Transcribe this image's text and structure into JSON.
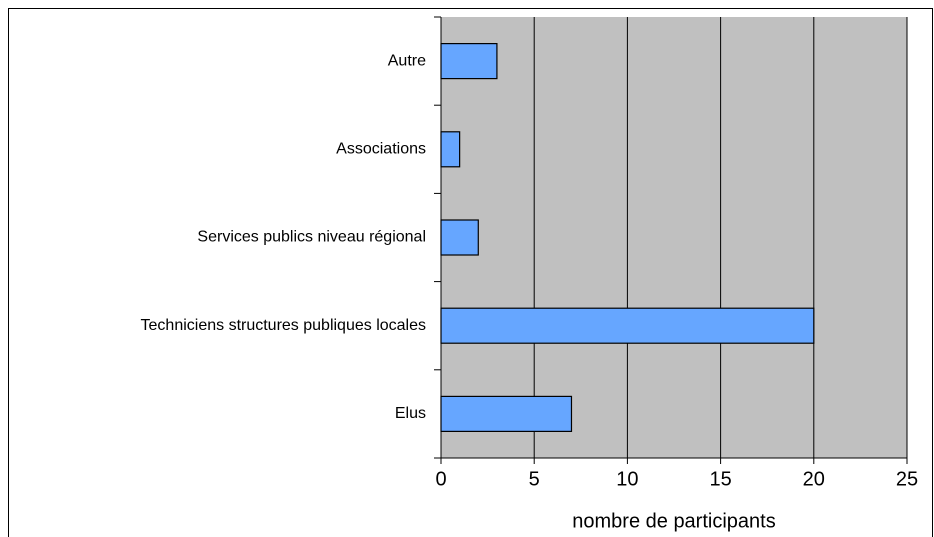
{
  "chart_data": {
    "type": "bar",
    "orientation": "horizontal",
    "categories": [
      "Autre",
      "Associations",
      "Services publics niveau régional",
      "Techniciens structures publiques locales",
      "Elus"
    ],
    "values": [
      3,
      1,
      2,
      20,
      7
    ],
    "color": "#66a6ff",
    "xlabel": "nombre de participants",
    "xlim": [
      0,
      25
    ],
    "xticks": [
      0,
      5,
      10,
      15,
      20,
      25
    ],
    "grid": true
  }
}
